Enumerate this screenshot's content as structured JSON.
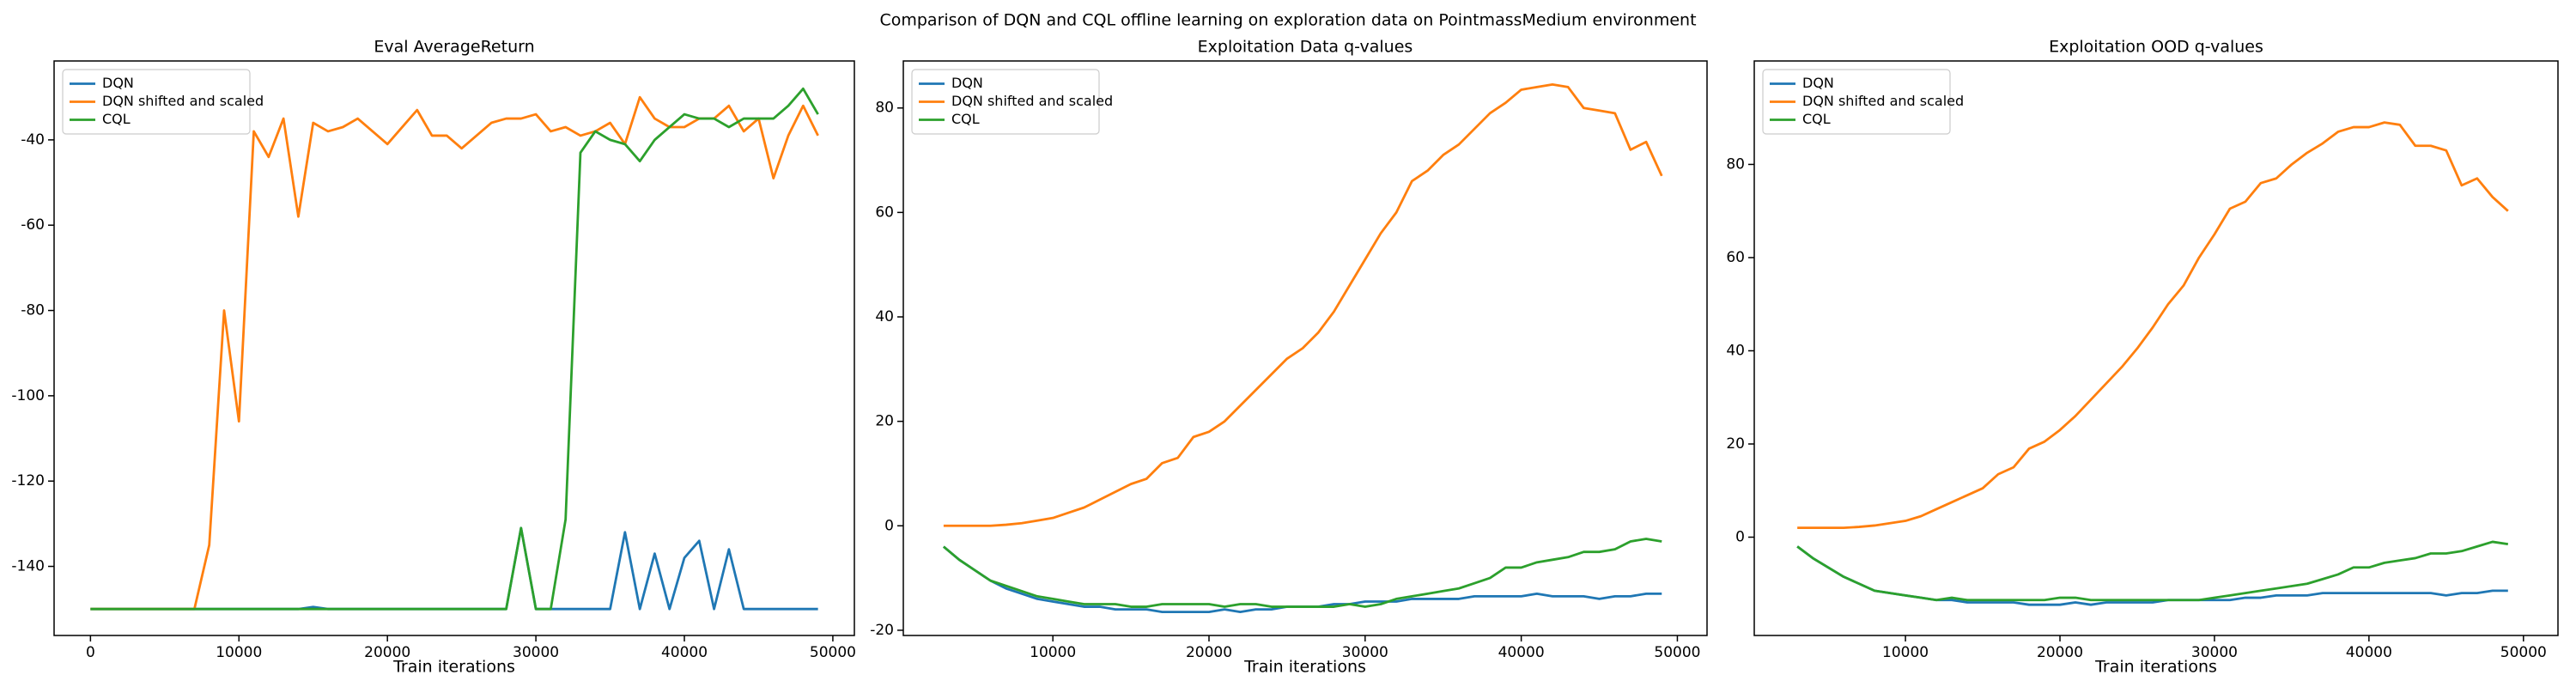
{
  "title": "Comparison of DQN and CQL offline learning on exploration data on PointmassMedium environment",
  "chart_data": [
    {
      "type": "line",
      "title": "Eval AverageReturn",
      "xlabel": "Train iterations",
      "legend": "upper left",
      "grid": false,
      "xlim": [
        -2450,
        51450
      ],
      "ylim": [
        -156.2,
        -21.5
      ],
      "xticks": [
        0,
        10000,
        20000,
        30000,
        40000,
        50000
      ],
      "yticks": [
        -140,
        -120,
        -100,
        -80,
        -60,
        -40
      ],
      "x": [
        0,
        1000,
        2000,
        3000,
        4000,
        5000,
        6000,
        7000,
        8000,
        9000,
        10000,
        11000,
        12000,
        13000,
        14000,
        15000,
        16000,
        17000,
        18000,
        19000,
        20000,
        21000,
        22000,
        23000,
        24000,
        25000,
        26000,
        27000,
        28000,
        29000,
        30000,
        31000,
        32000,
        33000,
        34000,
        35000,
        36000,
        37000,
        38000,
        39000,
        40000,
        41000,
        42000,
        43000,
        44000,
        45000,
        46000,
        47000,
        48000,
        49000
      ],
      "series": [
        {
          "name": "DQN",
          "color": "#1f77b4",
          "values": [
            -150,
            -150,
            -150,
            -150,
            -150,
            -150,
            -150,
            -150,
            -150,
            -150,
            -150,
            -150,
            -150,
            -150,
            -150,
            -149.5,
            -150,
            -150,
            -150,
            -150,
            -150,
            -150,
            -150,
            -150,
            -150,
            -150,
            -150,
            -150,
            -150,
            -131,
            -150,
            -150,
            -150,
            -150,
            -150,
            -150,
            -132,
            -150,
            -137,
            -150,
            -138,
            -134,
            -150,
            -136,
            -150,
            -150,
            -150,
            -150,
            -150,
            -150
          ]
        },
        {
          "name": "DQN shifted and scaled",
          "color": "#ff7f0e",
          "values": [
            -150,
            -150,
            -150,
            -150,
            -150,
            -150,
            -150,
            -150,
            -135,
            -80,
            -106,
            -38,
            -44,
            -35,
            -58,
            -36,
            -38,
            -37,
            -35,
            -38,
            -41,
            -37,
            -33,
            -39,
            -39,
            -42,
            -39,
            -36,
            -35,
            -35,
            -34,
            -38,
            -37,
            -39,
            -38,
            -36,
            -41,
            -30,
            -35,
            -37,
            -37,
            -35,
            -35,
            -32,
            -38,
            -35,
            -49,
            -39,
            -32,
            -39
          ]
        },
        {
          "name": "CQL",
          "color": "#2ca02c",
          "values": [
            -150,
            -150,
            -150,
            -150,
            -150,
            -150,
            -150,
            -150,
            -150,
            -150,
            -150,
            -150,
            -150,
            -150,
            -150,
            -150,
            -150,
            -150,
            -150,
            -150,
            -150,
            -150,
            -150,
            -150,
            -150,
            -150,
            -150,
            -150,
            -150,
            -131,
            -150,
            -150,
            -129,
            -43,
            -38,
            -40,
            -41,
            -45,
            -40,
            -37,
            -34,
            -35,
            -35,
            -37,
            -35,
            -35,
            -35,
            -32,
            -28,
            -34
          ]
        }
      ]
    },
    {
      "type": "line",
      "title": "Exploitation Data q-values",
      "xlabel": "Train iterations",
      "legend": "upper left",
      "grid": false,
      "xlim": [
        420,
        51900
      ],
      "ylim": [
        -21,
        89
      ],
      "xticks": [
        10000,
        20000,
        30000,
        40000,
        50000
      ],
      "yticks": [
        -20,
        0,
        20,
        40,
        60,
        80
      ],
      "x": [
        3000,
        4000,
        5000,
        6000,
        7000,
        8000,
        9000,
        10000,
        11000,
        12000,
        13000,
        14000,
        15000,
        16000,
        17000,
        18000,
        19000,
        20000,
        21000,
        22000,
        23000,
        24000,
        25000,
        26000,
        27000,
        28000,
        29000,
        30000,
        31000,
        32000,
        33000,
        34000,
        35000,
        36000,
        37000,
        38000,
        39000,
        40000,
        41000,
        42000,
        43000,
        44000,
        45000,
        46000,
        47000,
        48000,
        49000
      ],
      "series": [
        {
          "name": "DQN",
          "color": "#1f77b4",
          "values": [
            -4,
            -6.5,
            -8.5,
            -10.5,
            -12,
            -13,
            -14,
            -14.5,
            -15,
            -15.5,
            -15.5,
            -16,
            -16,
            -16,
            -16.5,
            -16.5,
            -16.5,
            -16.5,
            -16,
            -16.5,
            -16,
            -16,
            -15.5,
            -15.5,
            -15.5,
            -15,
            -15,
            -14.5,
            -14.5,
            -14.5,
            -14,
            -14,
            -14,
            -14,
            -13.5,
            -13.5,
            -13.5,
            -13.5,
            -13,
            -13.5,
            -13.5,
            -13.5,
            -14,
            -13.5,
            -13.5,
            -13,
            -13
          ]
        },
        {
          "name": "DQN shifted and scaled",
          "color": "#ff7f0e",
          "values": [
            0,
            0,
            0,
            0,
            0.2,
            0.5,
            1,
            1.5,
            2.5,
            3.5,
            5,
            6.5,
            8,
            9,
            12,
            13,
            17,
            18,
            20,
            23,
            26,
            29,
            32,
            34,
            37,
            41,
            46,
            51,
            56,
            60,
            66,
            68,
            71,
            73,
            76,
            79,
            81,
            83.5,
            84,
            84.5,
            84,
            80,
            79.5,
            79,
            72,
            73.5,
            67
          ]
        },
        {
          "name": "CQL",
          "color": "#2ca02c",
          "values": [
            -4,
            -6.5,
            -8.5,
            -10.5,
            -11.5,
            -12.5,
            -13.5,
            -14,
            -14.5,
            -15,
            -15,
            -15,
            -15.5,
            -15.5,
            -15,
            -15,
            -15,
            -15,
            -15.5,
            -15,
            -15,
            -15.5,
            -15.5,
            -15.5,
            -15.5,
            -15.5,
            -15,
            -15.5,
            -15,
            -14,
            -13.5,
            -13,
            -12.5,
            -12,
            -11,
            -10,
            -8,
            -8,
            -7,
            -6.5,
            -6,
            -5,
            -5,
            -4.5,
            -3,
            -2.5,
            -3
          ]
        }
      ]
    },
    {
      "type": "line",
      "title": "Exploitation OOD q-values",
      "xlabel": "Train iterations",
      "legend": "upper left",
      "grid": false,
      "xlim": [
        213,
        52234
      ],
      "ylim": [
        -21.1,
        102.2
      ],
      "xticks": [
        10000,
        20000,
        30000,
        40000,
        50000
      ],
      "yticks": [
        0,
        20,
        40,
        60,
        80
      ],
      "x": [
        3000,
        4000,
        5000,
        6000,
        7000,
        8000,
        9000,
        10000,
        11000,
        12000,
        13000,
        14000,
        15000,
        16000,
        17000,
        18000,
        19000,
        20000,
        21000,
        22000,
        23000,
        24000,
        25000,
        26000,
        27000,
        28000,
        29000,
        30000,
        31000,
        32000,
        33000,
        34000,
        35000,
        36000,
        37000,
        38000,
        39000,
        40000,
        41000,
        42000,
        43000,
        44000,
        45000,
        46000,
        47000,
        48000,
        49000
      ],
      "series": [
        {
          "name": "DQN",
          "color": "#1f77b4",
          "values": [
            -2,
            -4.5,
            -6.5,
            -8.5,
            -10,
            -11.5,
            -12,
            -12.5,
            -13,
            -13.5,
            -13.5,
            -14,
            -14,
            -14,
            -14,
            -14.5,
            -14.5,
            -14.5,
            -14,
            -14.5,
            -14,
            -14,
            -14,
            -14,
            -13.5,
            -13.5,
            -13.5,
            -13.5,
            -13.5,
            -13,
            -13,
            -12.5,
            -12.5,
            -12.5,
            -12,
            -12,
            -12,
            -12,
            -12,
            -12,
            -12,
            -12,
            -12.5,
            -12,
            -12,
            -11.5,
            -11.5
          ]
        },
        {
          "name": "DQN shifted and scaled",
          "color": "#ff7f0e",
          "values": [
            2,
            2,
            2,
            2,
            2.2,
            2.5,
            3,
            3.5,
            4.5,
            6,
            7.5,
            9,
            10.5,
            13.5,
            15,
            19,
            20.5,
            23,
            26,
            29.5,
            33,
            36.5,
            40.5,
            45,
            50,
            54,
            60,
            65,
            70.5,
            72,
            76,
            77,
            80,
            82.5,
            84.5,
            87,
            88,
            88,
            89,
            88.5,
            84,
            84,
            83,
            75.5,
            77,
            73,
            70
          ]
        },
        {
          "name": "CQL",
          "color": "#2ca02c",
          "values": [
            -2,
            -4.5,
            -6.5,
            -8.5,
            -10,
            -11.5,
            -12,
            -12.5,
            -13,
            -13.5,
            -13,
            -13.5,
            -13.5,
            -13.5,
            -13.5,
            -13.5,
            -13.5,
            -13,
            -13,
            -13.5,
            -13.5,
            -13.5,
            -13.5,
            -13.5,
            -13.5,
            -13.5,
            -13.5,
            -13,
            -12.5,
            -12,
            -11.5,
            -11,
            -10.5,
            -10,
            -9,
            -8,
            -6.5,
            -6.5,
            -5.5,
            -5,
            -4.5,
            -3.5,
            -3.5,
            -3,
            -2,
            -1,
            -1.5
          ]
        }
      ]
    }
  ]
}
